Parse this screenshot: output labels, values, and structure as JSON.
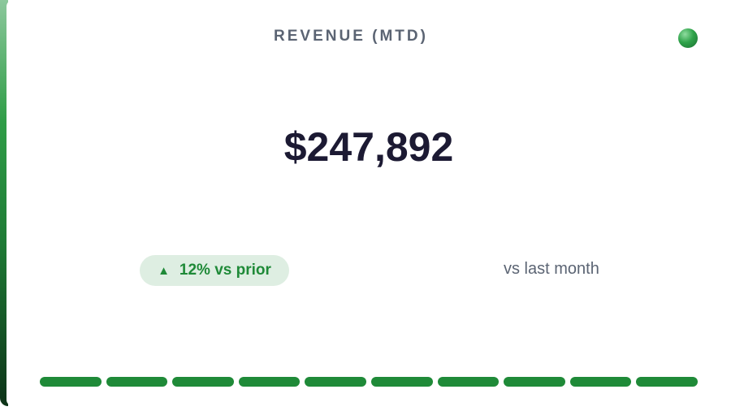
{
  "metric": {
    "title": "REVENUE (MTD)",
    "value": "$247,892",
    "delta_arrow": "▲",
    "delta_text": "12% vs prior",
    "comparison_label": "vs last month",
    "status_indicator_icon": "status-dot-icon",
    "progress_segments_filled": 10,
    "progress_segments_total": 10
  },
  "colors": {
    "accent": "#1f8a38",
    "delta_background": "#deeee2",
    "value_text": "#1c1a33",
    "muted_text": "#5b6473"
  }
}
